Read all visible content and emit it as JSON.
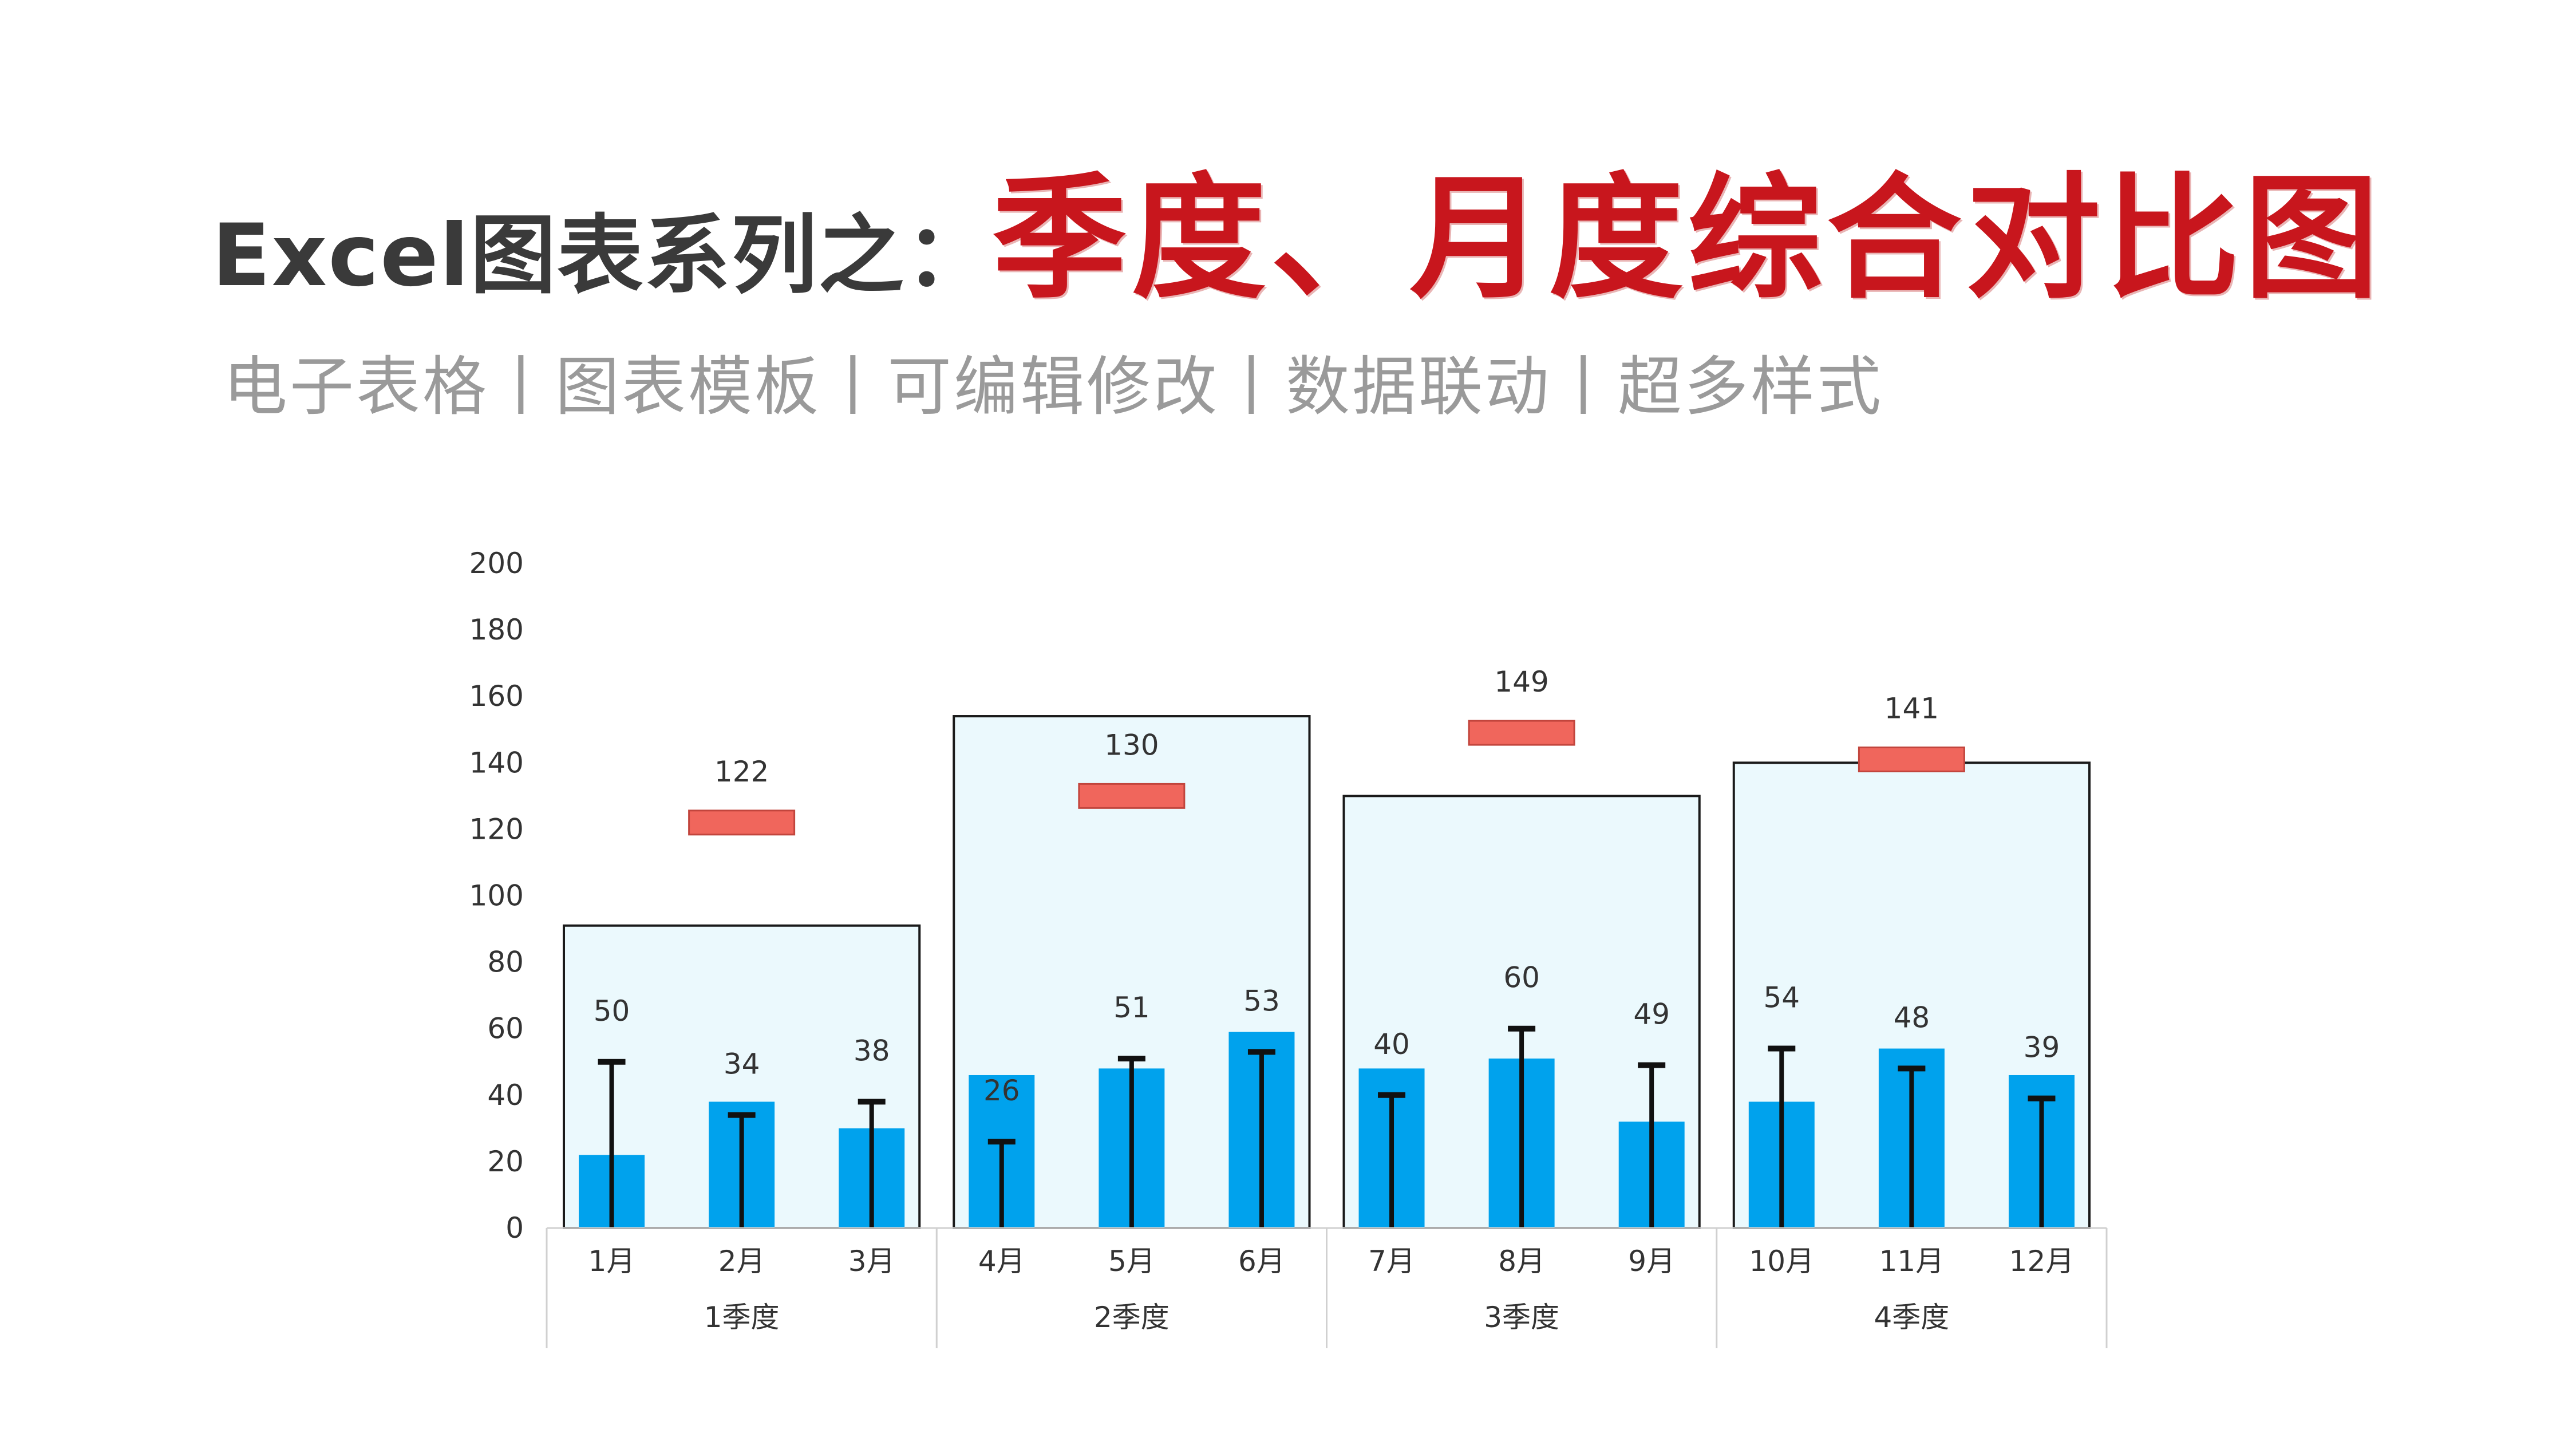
{
  "header": {
    "title_prefix": "Excel图表系列之：",
    "title_main": "季度、月度综合对比图",
    "subtitle": "电子表格丨图表模板丨可编辑修改丨数据联动丨超多样式"
  },
  "colors": {
    "month_bar": "#00a2ed",
    "quarter_box_fill": "#ebf9fd",
    "quarter_box_stroke": "#1a1a1a",
    "quarter_marker": "#f0665c",
    "error_bar": "#111111",
    "axis_text": "#333333",
    "title_red": "#c8161d"
  },
  "chart_data": {
    "type": "bar",
    "ylim": [
      0,
      200
    ],
    "yticks": [
      0,
      20,
      40,
      60,
      80,
      100,
      120,
      140,
      160,
      180,
      200
    ],
    "grid": false,
    "categories": [
      "1月",
      "2月",
      "3月",
      "4月",
      "5月",
      "6月",
      "7月",
      "8月",
      "9月",
      "10月",
      "11月",
      "12月"
    ],
    "series": [
      {
        "values": [
          22,
          38,
          30,
          46,
          48,
          59,
          48,
          51,
          32,
          38,
          54,
          46
        ]
      },
      {
        "values": [
          50,
          34,
          38,
          26,
          51,
          53,
          40,
          60,
          49,
          54,
          48,
          39
        ]
      }
    ],
    "groups": [
      {
        "label": "1季度",
        "box_value": 91,
        "marker_value": 122
      },
      {
        "label": "2季度",
        "box_value": 154,
        "marker_value": 130
      },
      {
        "label": "3季度",
        "box_value": 130,
        "marker_value": 149
      },
      {
        "label": "4季度",
        "box_value": 140,
        "marker_value": 141
      }
    ]
  }
}
